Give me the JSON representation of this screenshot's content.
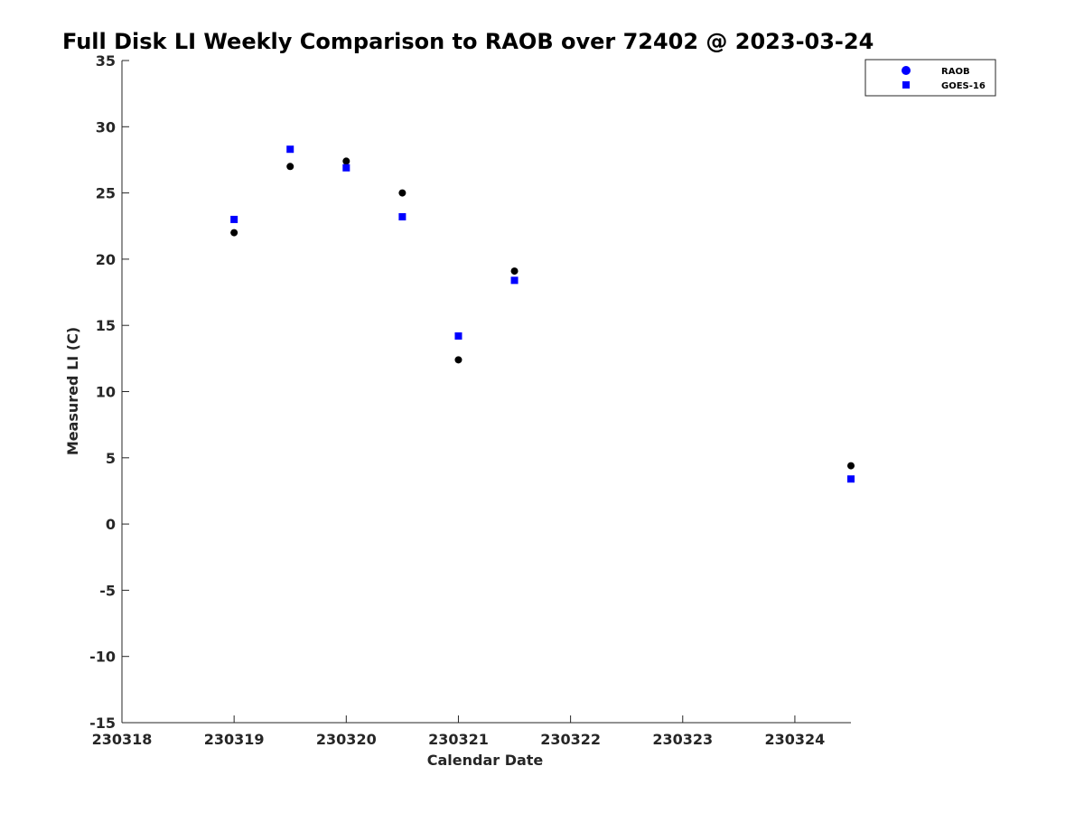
{
  "chart_data": {
    "type": "scatter",
    "title": "Full Disk LI Weekly Comparison to RAOB over 72402 @ 2023-03-24",
    "xlabel": "Calendar Date",
    "ylabel": "Measured LI (C)",
    "x_ticks": [
      "230318",
      "230319",
      "230320",
      "230321",
      "230322",
      "230323",
      "230324"
    ],
    "y_ticks": [
      "35",
      "30",
      "25",
      "20",
      "15",
      "10",
      "5",
      "0",
      "-5",
      "-10",
      "-15"
    ],
    "xlim": [
      "2023-03-18 00Z",
      "2023-03-24 12Z"
    ],
    "ylim": [
      -15,
      35
    ],
    "grid": false,
    "legend_position": "top-right",
    "series": [
      {
        "name": "RAOB",
        "marker": "circle",
        "color": "#000000",
        "legend_color": "#0000ff",
        "points": [
          {
            "x": "2023-03-19 00Z",
            "y": 22.0
          },
          {
            "x": "2023-03-19 12Z",
            "y": 27.0
          },
          {
            "x": "2023-03-20 00Z",
            "y": 27.4
          },
          {
            "x": "2023-03-20 12Z",
            "y": 25.0
          },
          {
            "x": "2023-03-21 00Z",
            "y": 12.4
          },
          {
            "x": "2023-03-21 12Z",
            "y": 19.1
          },
          {
            "x": "2023-03-24 12Z",
            "y": 4.4
          }
        ]
      },
      {
        "name": "GOES-16",
        "marker": "square",
        "color": "#0000ff",
        "legend_color": "#0000ff",
        "points": [
          {
            "x": "2023-03-19 00Z",
            "y": 23.0
          },
          {
            "x": "2023-03-19 12Z",
            "y": 28.3
          },
          {
            "x": "2023-03-20 00Z",
            "y": 26.9
          },
          {
            "x": "2023-03-20 12Z",
            "y": 23.2
          },
          {
            "x": "2023-03-21 00Z",
            "y": 14.2
          },
          {
            "x": "2023-03-21 12Z",
            "y": 18.4
          },
          {
            "x": "2023-03-24 12Z",
            "y": 3.4
          }
        ]
      }
    ]
  }
}
